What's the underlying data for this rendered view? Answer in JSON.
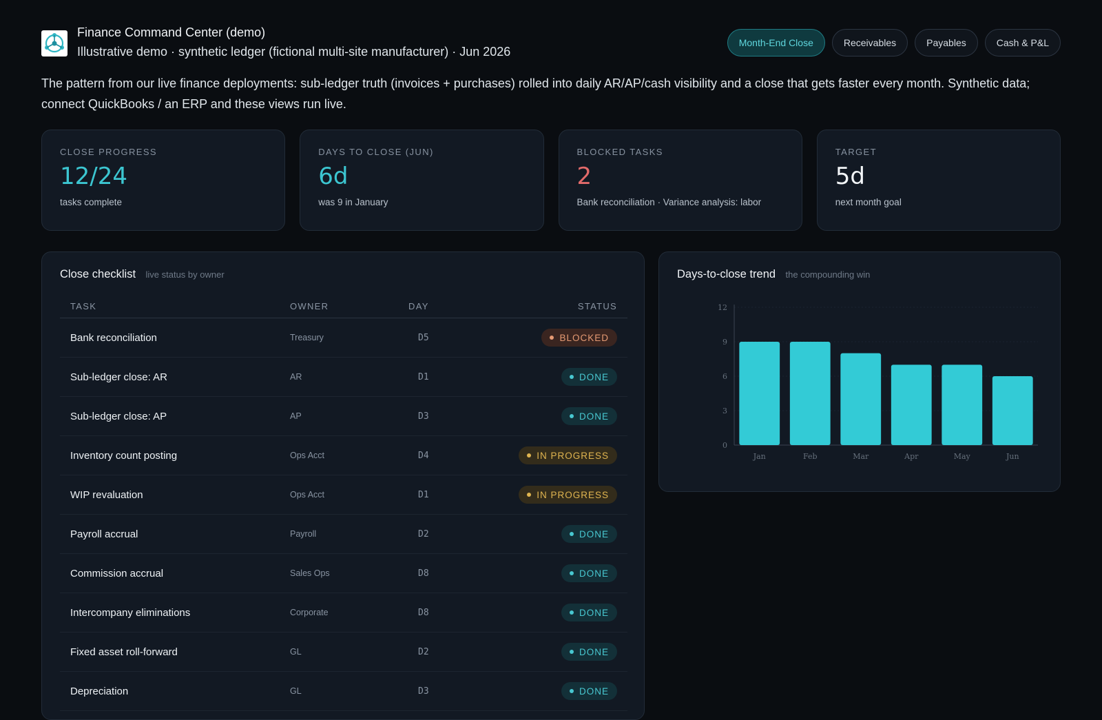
{
  "header": {
    "title": "Finance Command Center (demo)",
    "subtitle": "Illustrative demo · synthetic ledger (fictional multi-site manufacturer) · Jun 2026",
    "logo_icon": "network-nodes-logo",
    "tabs": [
      {
        "label": "Month-End Close",
        "active": true
      },
      {
        "label": "Receivables",
        "active": false
      },
      {
        "label": "Payables",
        "active": false
      },
      {
        "label": "Cash & P&L",
        "active": false
      }
    ]
  },
  "description": "The pattern from our live finance deployments: sub-ledger truth (invoices + purchases) rolled into daily AR/AP/cash visibility and a close that gets faster every month. Synthetic data; connect QuickBooks / an ERP and these views run live.",
  "kpis": [
    {
      "label": "CLOSE PROGRESS",
      "value": "12/24",
      "sub": "tasks complete",
      "color": "#3cc6d1"
    },
    {
      "label": "DAYS TO CLOSE (JUN)",
      "value": "6d",
      "sub": "was 9 in January",
      "color": "#3cc6d1"
    },
    {
      "label": "BLOCKED TASKS",
      "value": "2",
      "sub": "Bank reconciliation · Variance analysis: labor",
      "color": "#e26a6a"
    },
    {
      "label": "TARGET",
      "value": "5d",
      "sub": "next month goal",
      "color": "#f2f5f7"
    }
  ],
  "checklist": {
    "title": "Close checklist",
    "hint": "live status by owner",
    "columns": {
      "task": "TASK",
      "owner": "OWNER",
      "day": "DAY",
      "status": "STATUS"
    },
    "rows": [
      {
        "task": "Bank reconciliation",
        "owner": "Treasury",
        "day": "D5",
        "status": "BLOCKED",
        "kind": "blocked"
      },
      {
        "task": "Sub-ledger close: AR",
        "owner": "AR",
        "day": "D1",
        "status": "DONE",
        "kind": "done"
      },
      {
        "task": "Sub-ledger close: AP",
        "owner": "AP",
        "day": "D3",
        "status": "DONE",
        "kind": "done"
      },
      {
        "task": "Inventory count posting",
        "owner": "Ops Acct",
        "day": "D4",
        "status": "IN PROGRESS",
        "kind": "progress"
      },
      {
        "task": "WIP revaluation",
        "owner": "Ops Acct",
        "day": "D1",
        "status": "IN PROGRESS",
        "kind": "progress"
      },
      {
        "task": "Payroll accrual",
        "owner": "Payroll",
        "day": "D2",
        "status": "DONE",
        "kind": "done"
      },
      {
        "task": "Commission accrual",
        "owner": "Sales Ops",
        "day": "D8",
        "status": "DONE",
        "kind": "done"
      },
      {
        "task": "Intercompany eliminations",
        "owner": "Corporate",
        "day": "D8",
        "status": "DONE",
        "kind": "done"
      },
      {
        "task": "Fixed asset roll-forward",
        "owner": "GL",
        "day": "D2",
        "status": "DONE",
        "kind": "done"
      },
      {
        "task": "Depreciation",
        "owner": "GL",
        "day": "D3",
        "status": "DONE",
        "kind": "done"
      }
    ]
  },
  "trend": {
    "title": "Days-to-close trend",
    "hint": "the compounding win"
  },
  "chart_data": {
    "type": "bar",
    "categories": [
      "Jan",
      "Feb",
      "Mar",
      "Apr",
      "May",
      "Jun"
    ],
    "values": [
      9,
      9,
      8,
      7,
      7,
      6
    ],
    "yticks": [
      0,
      3,
      6,
      9,
      12
    ],
    "ylim": [
      0,
      12
    ],
    "title": "",
    "xlabel": "",
    "ylabel": "",
    "grid": true,
    "bar_color": "#33cbd6"
  }
}
